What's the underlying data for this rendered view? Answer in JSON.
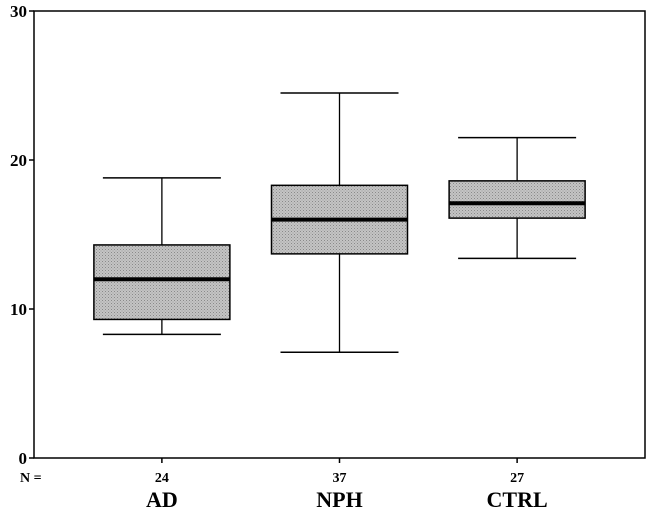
{
  "chart_data": {
    "type": "boxplot",
    "title": "",
    "xlabel": "",
    "ylabel": "",
    "ylim": [
      0,
      30
    ],
    "yticks": [
      0,
      10,
      20,
      30
    ],
    "grid": false,
    "n_label": "N =",
    "box_color": "#b8b8b8",
    "categories": [
      {
        "name": "AD",
        "n": "24",
        "min": 8.3,
        "q1": 9.3,
        "median": 12.0,
        "q3": 14.3,
        "max": 18.8
      },
      {
        "name": "NPH",
        "n": "37",
        "min": 7.1,
        "q1": 13.7,
        "median": 16.0,
        "q3": 18.3,
        "max": 24.5
      },
      {
        "name": "CTRL",
        "n": "27",
        "min": 13.4,
        "q1": 16.1,
        "median": 17.1,
        "q3": 18.6,
        "max": 21.5
      }
    ]
  }
}
